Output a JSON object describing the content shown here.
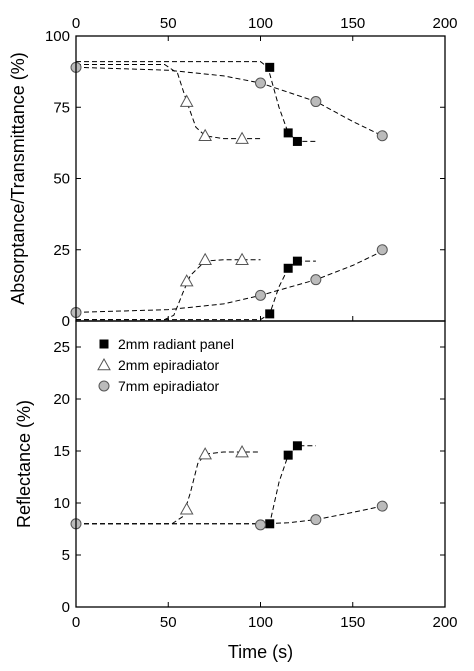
{
  "chart_data": [
    {
      "type": "scatter",
      "panel": "top",
      "xlabel": "",
      "ylabel": "Absorptance/Transmittance (%)",
      "xlim": [
        0,
        200
      ],
      "ylim": [
        0,
        100
      ],
      "x_ticks": [
        0,
        50,
        100,
        150,
        200
      ],
      "x_tick_labels": [
        "0",
        "50",
        "100",
        "150",
        "200"
      ],
      "y_ticks": [
        0,
        25,
        50,
        75,
        100
      ],
      "y_tick_labels": [
        "0",
        "25",
        "50",
        "75",
        "100"
      ],
      "series": [
        {
          "name": "2mm radiant panel",
          "marker": "filled-square",
          "group": "transmittance",
          "points": [
            [
              105,
              89
            ],
            [
              115,
              66
            ],
            [
              120,
              63
            ]
          ],
          "fit": [
            [
              0,
              91
            ],
            [
              100,
              91
            ],
            [
              104,
              89
            ],
            [
              110,
              75
            ],
            [
              115,
              66
            ],
            [
              120,
              63
            ],
            [
              130,
              63
            ]
          ]
        },
        {
          "name": "2mm radiant panel",
          "marker": "filled-square",
          "group": "absorptance",
          "points": [
            [
              105,
              2.5
            ],
            [
              115,
              18.5
            ],
            [
              120,
              21
            ]
          ],
          "fit": [
            [
              0,
              0.5
            ],
            [
              100,
              0.5
            ],
            [
              105,
              2.5
            ],
            [
              110,
              12
            ],
            [
              115,
              18.5
            ],
            [
              120,
              21
            ],
            [
              130,
              21
            ]
          ]
        },
        {
          "name": "2mm epiradiator",
          "marker": "open-triangle",
          "group": "transmittance",
          "points": [
            [
              60,
              77
            ],
            [
              70,
              65
            ],
            [
              90,
              64
            ]
          ],
          "fit": [
            [
              0,
              90
            ],
            [
              48,
              90
            ],
            [
              55,
              87
            ],
            [
              60,
              77
            ],
            [
              65,
              68
            ],
            [
              70,
              65
            ],
            [
              80,
              64
            ],
            [
              100,
              64
            ]
          ]
        },
        {
          "name": "2mm epiradiator",
          "marker": "open-triangle",
          "group": "absorptance",
          "points": [
            [
              60,
              14
            ],
            [
              70,
              21.5
            ],
            [
              90,
              21.5
            ]
          ],
          "fit": [
            [
              0,
              0.5
            ],
            [
              48,
              0.5
            ],
            [
              53,
              2
            ],
            [
              58,
              10
            ],
            [
              62,
              16
            ],
            [
              70,
              21
            ],
            [
              80,
              21.5
            ],
            [
              100,
              21.5
            ]
          ]
        },
        {
          "name": "7mm epiradiator",
          "marker": "filled-circle",
          "group": "transmittance",
          "points": [
            [
              0,
              89
            ],
            [
              100,
              83.5
            ],
            [
              130,
              77
            ],
            [
              166,
              65
            ]
          ],
          "fit": [
            [
              0,
              89
            ],
            [
              50,
              88
            ],
            [
              80,
              86
            ],
            [
              100,
              83.5
            ],
            [
              130,
              77
            ],
            [
              150,
              70
            ],
            [
              166,
              65
            ]
          ]
        },
        {
          "name": "7mm epiradiator",
          "marker": "filled-circle",
          "group": "absorptance",
          "points": [
            [
              0,
              3
            ],
            [
              100,
              9
            ],
            [
              130,
              14.5
            ],
            [
              166,
              25
            ]
          ],
          "fit": [
            [
              0,
              3
            ],
            [
              50,
              4
            ],
            [
              80,
              6
            ],
            [
              100,
              9
            ],
            [
              130,
              14.5
            ],
            [
              150,
              19.5
            ],
            [
              166,
              24.5
            ]
          ]
        }
      ]
    },
    {
      "type": "scatter",
      "panel": "bottom",
      "xlabel": "Time (s)",
      "ylabel": "Reflectance (%)",
      "xlim": [
        0,
        200
      ],
      "ylim": [
        0,
        27.5
      ],
      "x_ticks": [
        0,
        50,
        100,
        150,
        200
      ],
      "x_tick_labels": [
        "0",
        "50",
        "100",
        "150",
        "200"
      ],
      "y_ticks": [
        0,
        5,
        10,
        15,
        20,
        25
      ],
      "y_tick_labels": [
        "0",
        "5",
        "10",
        "15",
        "20",
        "25"
      ],
      "legend": {
        "placement": "top-left",
        "entries": [
          {
            "label": "2mm radiant panel",
            "marker": "filled-square"
          },
          {
            "label": "2mm epiradiator",
            "marker": "open-triangle"
          },
          {
            "label": "7mm epiradiator",
            "marker": "filled-circle"
          }
        ]
      },
      "series": [
        {
          "name": "2mm radiant panel",
          "marker": "filled-square",
          "points": [
            [
              105,
              8
            ],
            [
              115,
              14.6
            ],
            [
              120,
              15.5
            ]
          ],
          "fit": [
            [
              0,
              8
            ],
            [
              100,
              8
            ],
            [
              105,
              8
            ],
            [
              110,
              12
            ],
            [
              115,
              14.6
            ],
            [
              120,
              15.5
            ],
            [
              130,
              15.5
            ]
          ]
        },
        {
          "name": "2mm epiradiator",
          "marker": "open-triangle",
          "points": [
            [
              60,
              9.4
            ],
            [
              70,
              14.7
            ],
            [
              90,
              14.9
            ]
          ],
          "fit": [
            [
              0,
              8
            ],
            [
              52,
              8
            ],
            [
              58,
              8.7
            ],
            [
              62,
              11
            ],
            [
              66,
              13.8
            ],
            [
              70,
              14.7
            ],
            [
              80,
              14.9
            ],
            [
              100,
              14.9
            ]
          ]
        },
        {
          "name": "7mm epiradiator",
          "marker": "filled-circle",
          "points": [
            [
              0,
              8
            ],
            [
              100,
              7.9
            ],
            [
              130,
              8.4
            ],
            [
              166,
              9.7
            ]
          ],
          "fit": [
            [
              0,
              8
            ],
            [
              100,
              8
            ],
            [
              115,
              8.1
            ],
            [
              130,
              8.4
            ],
            [
              150,
              9.1
            ],
            [
              166,
              9.7
            ]
          ]
        }
      ]
    }
  ]
}
